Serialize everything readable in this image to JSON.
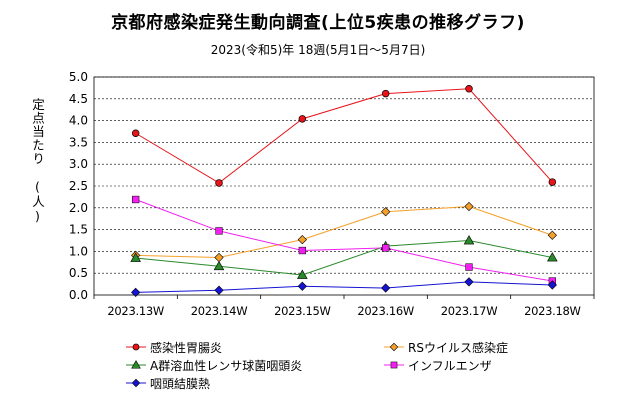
{
  "title": "京都府感染症発生動向調査(上位5疾患の推移グラフ)",
  "subtitle": "2023(令和5)年 18週(5月1日〜5月7日)",
  "ylabel": "定点当たり　(人)",
  "chart_data": {
    "type": "line",
    "title": "京都府感染症発生動向調査(上位5疾患の推移グラフ)",
    "subtitle": "2023(令和5)年 18週(5月1日〜5月7日)",
    "ylabel": "定点当たり　(人)",
    "xlabel": "",
    "categories": [
      "2023.13W",
      "2023.14W",
      "2023.15W",
      "2023.16W",
      "2023.17W",
      "2023.18W"
    ],
    "ylim": [
      0,
      5
    ],
    "yticks": [
      "0.0",
      "0.5",
      "1.0",
      "1.5",
      "2.0",
      "2.5",
      "3.0",
      "3.5",
      "4.0",
      "4.5",
      "5.0"
    ],
    "grid": "horizontal dashed",
    "legend_position": "bottom",
    "series": [
      {
        "name": "感染性胃腸炎",
        "color": "#e8141a",
        "marker": "circle",
        "values": [
          3.71,
          2.57,
          4.04,
          4.62,
          4.73,
          2.59
        ]
      },
      {
        "name": "RSウイルス感染症",
        "color": "#f5a02a",
        "marker": "diamond",
        "values": [
          0.91,
          0.86,
          1.27,
          1.91,
          2.03,
          1.37
        ]
      },
      {
        "name": "A群溶血性レンサ球菌咽頭炎",
        "color": "#2a8a2a",
        "marker": "triangle",
        "values": [
          0.85,
          0.66,
          0.46,
          1.12,
          1.25,
          0.86
        ]
      },
      {
        "name": "インフルエンザ",
        "color": "#f020f0",
        "marker": "square",
        "values": [
          2.19,
          1.47,
          1.02,
          1.08,
          0.64,
          0.32
        ]
      },
      {
        "name": "咽頭結膜熱",
        "color": "#1414d2",
        "marker": "diamond",
        "values": [
          0.06,
          0.11,
          0.2,
          0.16,
          0.3,
          0.23
        ]
      }
    ]
  }
}
